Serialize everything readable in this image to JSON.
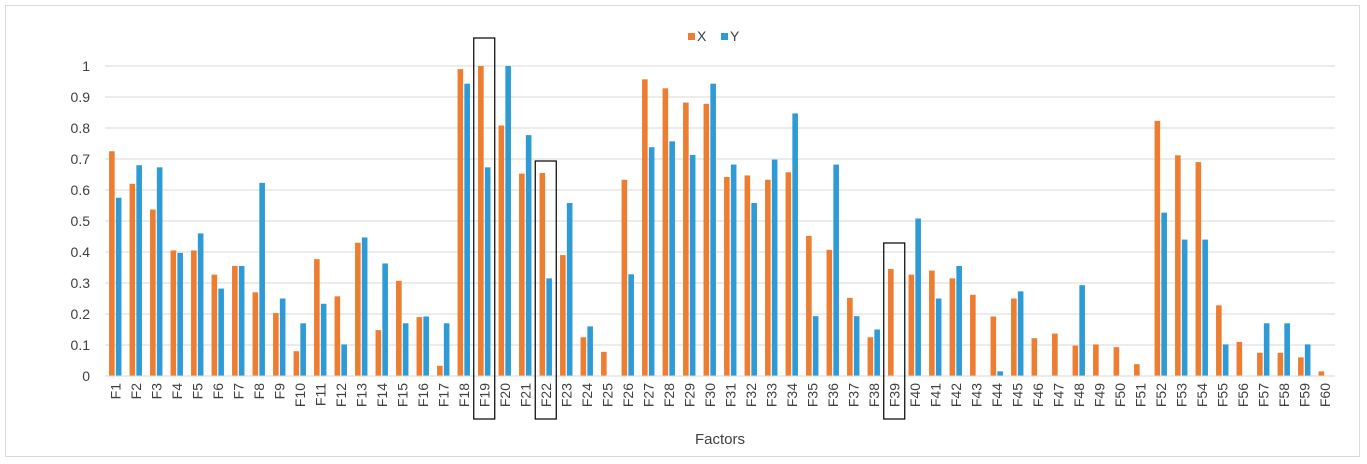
{
  "chart_data": {
    "type": "bar",
    "title": "",
    "xlabel": "Factors",
    "ylabel": "",
    "ylim": [
      0,
      1
    ],
    "yticks": [
      0,
      0.1,
      0.2,
      0.3,
      0.4,
      0.5,
      0.6,
      0.7,
      0.8,
      0.9,
      1
    ],
    "ytick_labels": [
      "0",
      "0.1",
      "0.2",
      "0.3",
      "0.4",
      "0.5",
      "0.6",
      "0.7",
      "0.8",
      "0.9",
      "1"
    ],
    "grid": true,
    "legend_position": "top-center",
    "highlighted_categories": [
      "F19",
      "F22",
      "F39"
    ],
    "categories": [
      "F1",
      "F2",
      "F3",
      "F4",
      "F5",
      "F6",
      "F7",
      "F8",
      "F9",
      "F10",
      "F11",
      "F12",
      "F13",
      "F14",
      "F15",
      "F16",
      "F17",
      "F18",
      "F19",
      "F20",
      "F21",
      "F22",
      "F23",
      "F24",
      "F25",
      "F26",
      "F27",
      "F28",
      "F29",
      "F30",
      "F31",
      "F32",
      "F33",
      "F34",
      "F35",
      "F36",
      "F37",
      "F38",
      "F39",
      "F40",
      "F41",
      "F42",
      "F43",
      "F44",
      "F45",
      "F46",
      "F47",
      "F48",
      "F49",
      "F50",
      "F51",
      "F52",
      "F53",
      "F54",
      "F55",
      "F56",
      "F57",
      "F58",
      "F59",
      "F60"
    ],
    "series": [
      {
        "name": "X",
        "color": "#ED7D31",
        "values": [
          0.725,
          0.62,
          0.537,
          0.405,
          0.405,
          0.327,
          0.355,
          0.27,
          0.203,
          0.08,
          0.377,
          0.257,
          0.43,
          0.148,
          0.307,
          0.19,
          0.033,
          0.99,
          1.0,
          0.808,
          0.653,
          0.655,
          0.39,
          0.125,
          0.078,
          0.633,
          0.957,
          0.928,
          0.882,
          0.878,
          0.642,
          0.647,
          0.633,
          0.657,
          0.452,
          0.407,
          0.252,
          0.125,
          0.345,
          0.327,
          0.34,
          0.315,
          0.262,
          0.192,
          0.25,
          0.122,
          0.137,
          0.098,
          0.102,
          0.093,
          0.038,
          0.823,
          0.712,
          0.69,
          0.228,
          0.11,
          0.075,
          0.075,
          0.06,
          0.015
        ]
      },
      {
        "name": "Y",
        "color": "#2E9BD6",
        "values": [
          0.575,
          0.68,
          0.673,
          0.397,
          0.46,
          0.282,
          0.355,
          0.623,
          0.25,
          0.17,
          0.233,
          0.102,
          0.447,
          0.363,
          0.17,
          0.192,
          0.17,
          0.943,
          0.673,
          1.0,
          0.777,
          0.315,
          0.558,
          0.16,
          0,
          0.328,
          0.738,
          0.757,
          0.713,
          0.943,
          0.682,
          0.558,
          0.698,
          0.847,
          0.193,
          0.682,
          0.193,
          0.15,
          0,
          0.508,
          0.25,
          0.355,
          0,
          0.015,
          0.273,
          0,
          0,
          0.293,
          0,
          0,
          0,
          0.527,
          0.44,
          0.44,
          0.102,
          0,
          0.17,
          0.17,
          0.102,
          0
        ]
      }
    ]
  }
}
